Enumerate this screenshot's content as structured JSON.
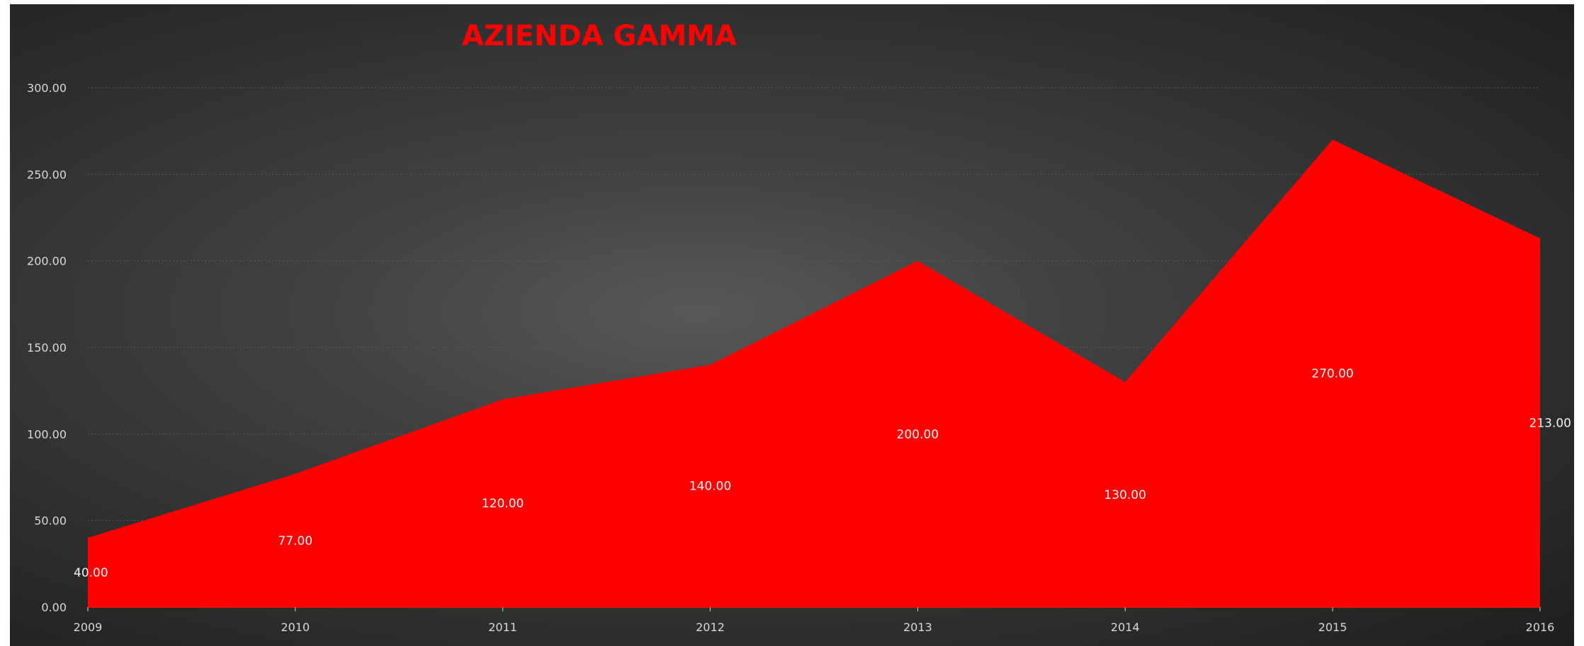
{
  "chart_data": {
    "type": "area",
    "title": "AZIENDA GAMMA",
    "categories": [
      "2009",
      "2010",
      "2011",
      "2012",
      "2013",
      "2014",
      "2015",
      "2016"
    ],
    "values": [
      40,
      77,
      120,
      140,
      200,
      130,
      270,
      213
    ],
    "data_labels": [
      "40.00",
      "77.00",
      "120.00",
      "140.00",
      "200.00",
      "130.00",
      "270.00",
      "213.00"
    ],
    "y_ticks": [
      "0.00",
      "50.00",
      "100.00",
      "150.00",
      "200.00",
      "250.00",
      "300.00"
    ],
    "ylim": [
      0,
      300
    ],
    "xlabel": "",
    "ylabel": "",
    "grid": true,
    "legend": "none",
    "series_color": "#ff0000",
    "background_color": "#3a3a3a"
  }
}
